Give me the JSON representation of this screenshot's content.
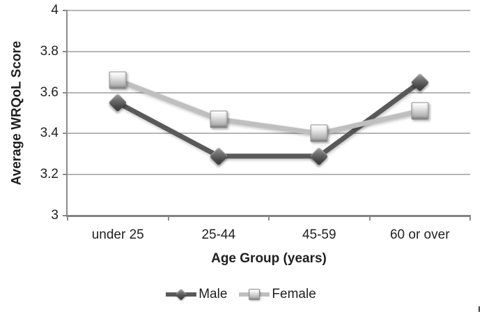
{
  "chart_data": {
    "type": "line",
    "title": "",
    "xlabel": "Age Group (years)",
    "ylabel": "Average WRQoL Score",
    "categories": [
      "under 25",
      "25-44",
      "45-59",
      "60 or over"
    ],
    "series": [
      {
        "name": "Male",
        "marker": "diamond",
        "color": "#595959",
        "values": [
          3.55,
          3.29,
          3.29,
          3.65
        ]
      },
      {
        "name": "Female",
        "marker": "square",
        "color": "#bfbfbf",
        "values": [
          3.66,
          3.47,
          3.4,
          3.51
        ]
      }
    ],
    "ylim": [
      3,
      4
    ],
    "yticks": [
      4,
      3.8,
      3.6,
      3.4,
      3.2,
      3
    ],
    "ytick_labels": [
      "4",
      "3.8",
      "3.6",
      "3.4",
      "3.2",
      "3"
    ],
    "grid": true,
    "legend_position": "bottom",
    "legend": [
      "Male",
      "Female"
    ]
  },
  "colors": {
    "male_series": "#595959",
    "female_series": "#bfbfbf",
    "gridline": "#b5b5b5",
    "axis": "#8a8a8a",
    "x_axis": "#828282",
    "text": "#1f1f1f",
    "background": "#ffffff"
  }
}
